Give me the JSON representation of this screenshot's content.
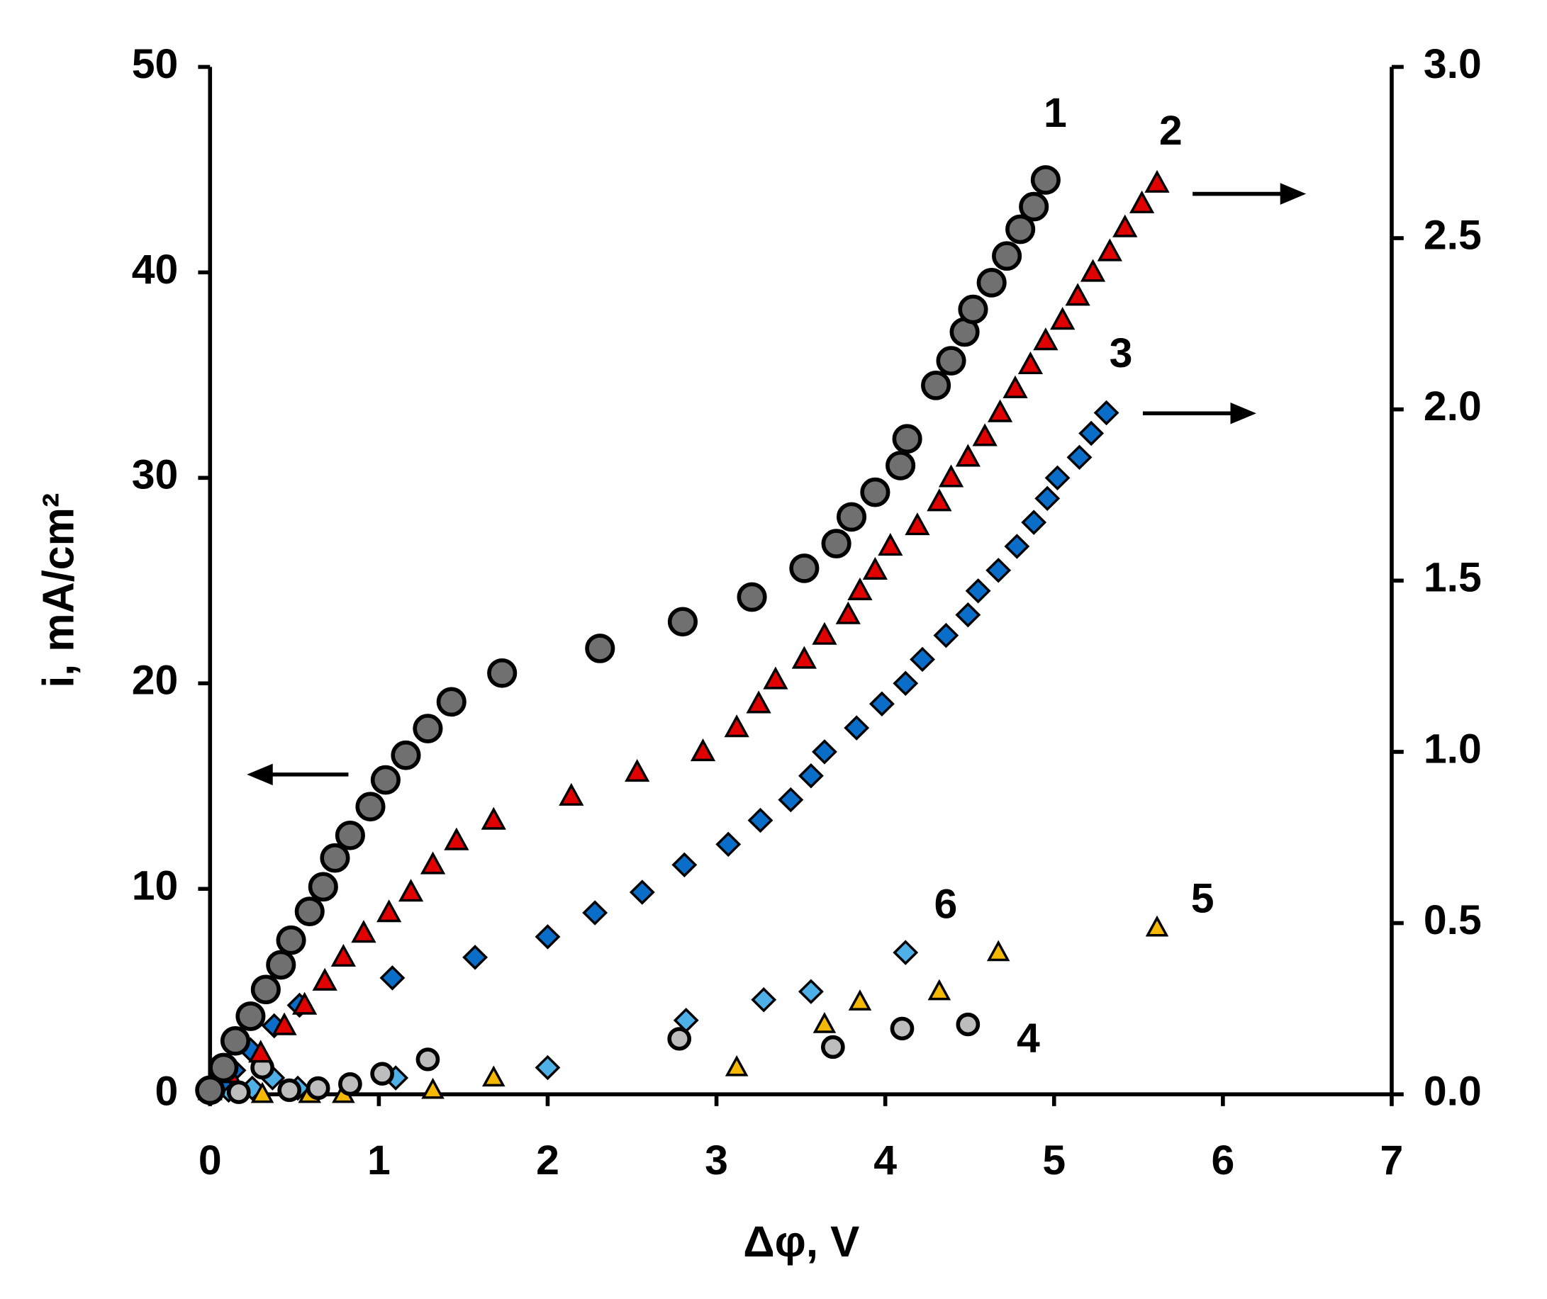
{
  "chart_data": {
    "type": "scatter",
    "x_label": "Δφ, V",
    "y_label": "i, mA/cm²",
    "xlim": [
      0,
      7
    ],
    "xticks": [
      0,
      1,
      2,
      3,
      4,
      5,
      6,
      7
    ],
    "ylim": [
      0,
      50
    ],
    "yticks": [
      0,
      10,
      20,
      30,
      40,
      50
    ],
    "y2lim": [
      0,
      3
    ],
    "y2ticks": [
      {
        "value": 0,
        "label": "0.0"
      },
      0.5,
      {
        "value": 1,
        "label": "1.0"
      },
      1.5,
      {
        "value": 2,
        "label": "2.0"
      },
      2.5,
      {
        "value": 3,
        "label": "3.0"
      }
    ],
    "series": [
      {
        "name": "1",
        "color": "#707070",
        "marker": "circle",
        "x": [
          0,
          0.08,
          0.15,
          0.24,
          0.33,
          0.42,
          0.48,
          0.59,
          0.67,
          0.74,
          0.83,
          0.95,
          1.04,
          1.16,
          1.29,
          1.43,
          1.73,
          2.31,
          2.8,
          3.21,
          3.52,
          3.71,
          3.8,
          3.94,
          4.09,
          4.13,
          4.3,
          4.39,
          4.47,
          4.52,
          4.63,
          4.72,
          4.8,
          4.88,
          4.95
        ],
        "values": [
          0.2,
          1.3,
          2.6,
          3.8,
          5.1,
          6.3,
          7.5,
          8.9,
          10.1,
          11.5,
          12.6,
          14.0,
          15.3,
          16.5,
          17.8,
          19.1,
          20.5,
          21.7,
          23.0,
          24.2,
          25.6,
          26.8,
          28.1,
          29.3,
          30.6,
          31.9,
          34.5,
          35.7,
          37.1,
          38.2,
          39.5,
          40.8,
          42.1,
          43.2,
          44.5
        ]
      },
      {
        "name": "2",
        "color": "#e00000",
        "marker": "triangle",
        "axis": "y2",
        "x": [
          0,
          0.11,
          0.3,
          0.44,
          0.56,
          0.68,
          0.79,
          0.91,
          1.06,
          1.19,
          1.32,
          1.46,
          1.68,
          2.14,
          2.53,
          2.92,
          3.12,
          3.25,
          3.35,
          3.52,
          3.64,
          3.78,
          3.85,
          3.94,
          4.03,
          4.19,
          4.32,
          4.39,
          4.49,
          4.59,
          4.68,
          4.77,
          4.86,
          4.95,
          5.05,
          5.14,
          5.23,
          5.33,
          5.42,
          5.52,
          5.61
        ],
        "values": [
          0.01,
          0.06,
          0.12,
          0.2,
          0.26,
          0.33,
          0.4,
          0.47,
          0.53,
          0.59,
          0.67,
          0.74,
          0.8,
          0.87,
          0.94,
          1.0,
          1.07,
          1.14,
          1.21,
          1.27,
          1.34,
          1.4,
          1.47,
          1.53,
          1.6,
          1.66,
          1.73,
          1.8,
          1.86,
          1.92,
          1.99,
          2.06,
          2.13,
          2.2,
          2.26,
          2.33,
          2.4,
          2.46,
          2.53,
          2.6,
          2.66
        ]
      },
      {
        "name": "3",
        "color": "#0a6ec8",
        "marker": "diamond",
        "axis": "y2",
        "x": [
          0,
          0.06,
          0.14,
          0.24,
          0.38,
          0.53,
          1.08,
          1.57,
          2.0,
          2.28,
          2.56,
          2.81,
          3.07,
          3.26,
          3.44,
          3.56,
          3.64,
          3.83,
          3.98,
          4.12,
          4.22,
          4.36,
          4.49,
          4.55,
          4.67,
          4.78,
          4.88,
          4.96,
          5.02,
          5.15,
          5.22,
          5.31
        ],
        "values": [
          0.01,
          0.03,
          0.07,
          0.13,
          0.2,
          0.26,
          0.34,
          0.4,
          0.46,
          0.53,
          0.59,
          0.67,
          0.73,
          0.8,
          0.86,
          0.93,
          1.0,
          1.07,
          1.14,
          1.2,
          1.27,
          1.34,
          1.4,
          1.47,
          1.53,
          1.6,
          1.67,
          1.74,
          1.8,
          1.86,
          1.93,
          1.99
        ]
      },
      {
        "name": "4",
        "color": "#bdbdbd",
        "marker": "circle",
        "x": [
          0.02,
          0.17,
          0.31,
          0.47,
          0.64,
          0.83,
          1.02,
          1.29,
          2.78,
          3.69,
          4.1,
          4.49
        ],
        "values": [
          0.2,
          0.1,
          1.3,
          0.2,
          0.3,
          0.5,
          1.0,
          1.7,
          2.7,
          2.3,
          3.2,
          3.4
        ]
      },
      {
        "name": "5",
        "color": "#f5b800",
        "marker": "triangle",
        "x": [
          0.31,
          0.59,
          0.79,
          1.32,
          1.68,
          3.12,
          3.64,
          3.85,
          4.32,
          4.67,
          5.61
        ],
        "values": [
          0,
          0,
          0,
          0.2,
          0.8,
          1.3,
          3.4,
          4.5,
          5.0,
          6.9,
          8.1
        ]
      },
      {
        "name": "6",
        "color": "#4fb0e8",
        "marker": "diamond",
        "x": [
          0,
          0.11,
          0.25,
          0.37,
          0.52,
          1.1,
          2.0,
          2.82,
          3.28,
          3.56,
          4.12
        ],
        "values": [
          0.1,
          0.2,
          0.3,
          0.8,
          0.3,
          0.8,
          1.3,
          3.6,
          4.6,
          5.0,
          6.9
        ]
      }
    ]
  }
}
